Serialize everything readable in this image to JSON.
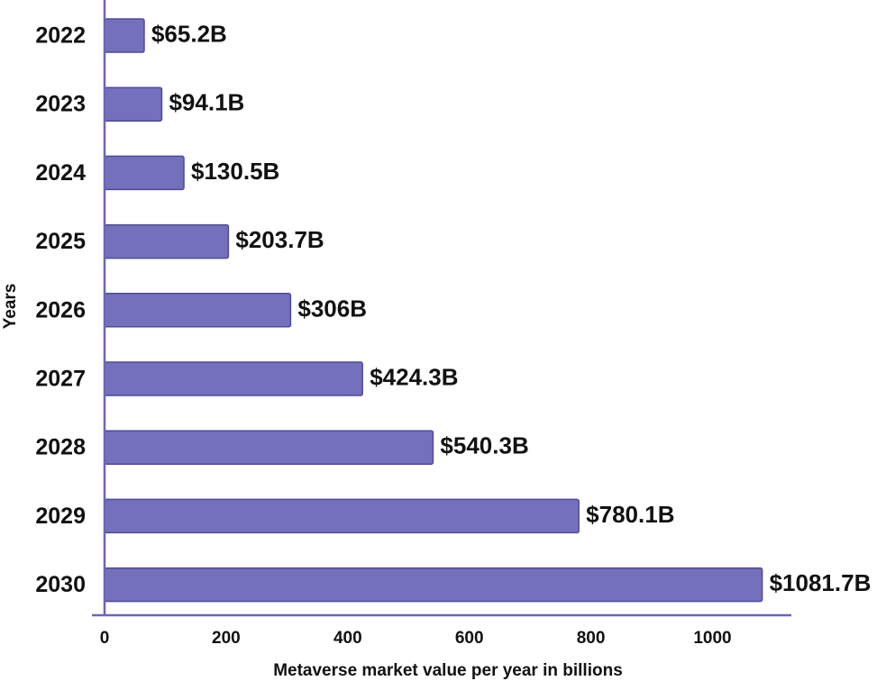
{
  "colors": {
    "bar_fill": "#7470bb",
    "bar_stroke": "#4f4a9e",
    "axis_line": "#6b66b5",
    "text": "#111111"
  },
  "chart_data": {
    "type": "bar",
    "orientation": "horizontal",
    "title": "",
    "xlabel": "Metaverse market value per year in billions",
    "ylabel": "Years",
    "categories": [
      "2022",
      "2023",
      "2024",
      "2025",
      "2026",
      "2027",
      "2028",
      "2029",
      "2030"
    ],
    "values": [
      65.2,
      94.1,
      130.5,
      203.7,
      306,
      424.3,
      540.3,
      780.1,
      1081.7
    ],
    "data_labels": [
      "$65.2B",
      "$94.1B",
      "$130.5B",
      "$203.7B",
      "$306B",
      "$424.3B",
      "$540.3B",
      "$780.1B",
      "$1081.7B"
    ],
    "xticks": [
      "0",
      "200",
      "400",
      "600",
      "800",
      "1000"
    ],
    "xlim": [
      0,
      1150
    ],
    "grid": false,
    "legend": "none"
  }
}
